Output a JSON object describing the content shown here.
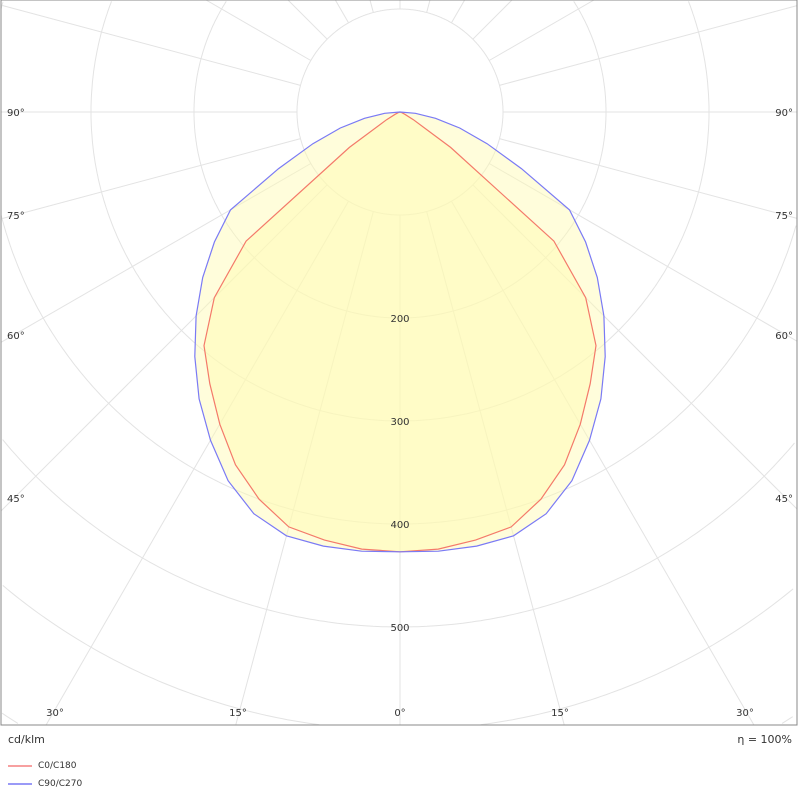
{
  "chart_data": {
    "type": "polar-line",
    "unit_label": "cd/klm",
    "efficiency_label": "η = 100%",
    "radial_ticks": [
      100,
      200,
      300,
      400,
      500,
      600,
      700
    ],
    "radial_tick_labels": [
      "200",
      "300",
      "400",
      "500"
    ],
    "angle_labels_side": [
      "90°",
      "75°",
      "60°",
      "45°"
    ],
    "angle_labels_bottom": [
      "30°",
      "15°",
      "0°",
      "15°",
      "30°"
    ],
    "angles_deg": [
      0,
      5,
      10,
      15,
      20,
      25,
      30,
      35,
      40,
      45,
      50,
      55,
      60,
      65,
      70,
      75,
      80,
      85,
      90
    ],
    "series": [
      {
        "name": "C0/C180",
        "color": "#f47a6a",
        "values": [
          427,
          426,
          422,
          417,
          400,
          378,
          350,
          322,
          296,
          255,
          195,
          60,
          15,
          5,
          2,
          1,
          0,
          0,
          0
        ]
      },
      {
        "name": "C90/C270",
        "color": "#7a7af5",
        "values": [
          427,
          428,
          428,
          426,
          415,
          395,
          368,
          340,
          310,
          280,
          250,
          220,
          190,
          130,
          90,
          60,
          35,
          15,
          0
        ]
      }
    ],
    "grid": true,
    "fill_color": "#fffbb0"
  }
}
